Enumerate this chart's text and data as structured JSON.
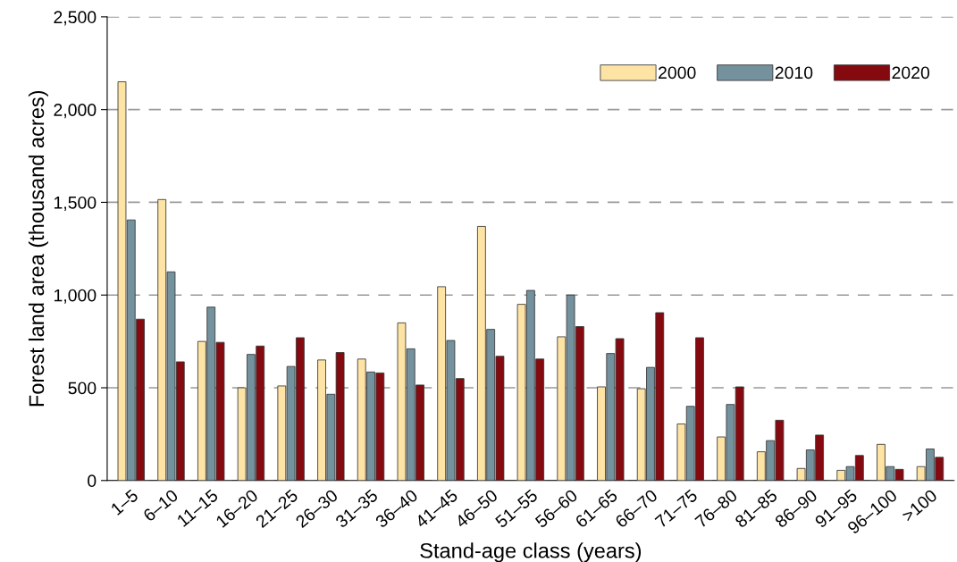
{
  "chart_data": {
    "type": "bar",
    "xlabel": "Stand-age class (years)",
    "ylabel": "Forest land area (thousand acres)",
    "categories": [
      "1–5",
      "6–10",
      "11–15",
      "16–20",
      "21–25",
      "26–30",
      "31–35",
      "36–40",
      "41–45",
      "46–50",
      "51–55",
      "56–60",
      "61–65",
      "66–70",
      "71–75",
      "76–80",
      "81–85",
      "86–90",
      "91–95",
      "96–100",
      ">100"
    ],
    "series": [
      {
        "name": "2000",
        "color": "#fde3a4",
        "values": [
          2150,
          1515,
          750,
          500,
          510,
          650,
          655,
          850,
          1045,
          1370,
          950,
          775,
          505,
          495,
          305,
          235,
          155,
          65,
          55,
          195,
          75
        ]
      },
      {
        "name": "2010",
        "color": "#74919e",
        "values": [
          1405,
          1125,
          935,
          680,
          615,
          465,
          585,
          710,
          755,
          815,
          1025,
          1000,
          685,
          610,
          400,
          410,
          215,
          165,
          75,
          75,
          170
        ]
      },
      {
        "name": "2020",
        "color": "#850a10",
        "values": [
          870,
          640,
          745,
          725,
          770,
          690,
          580,
          515,
          550,
          670,
          655,
          830,
          765,
          905,
          770,
          505,
          325,
          245,
          135,
          60,
          125
        ]
      }
    ],
    "ylim": [
      0,
      2500
    ],
    "yticks": [
      0,
      {
        "value": 500,
        "label": "500"
      },
      {
        "value": 1000,
        "label": "1,000"
      },
      {
        "value": 1500,
        "label": "1,500"
      },
      {
        "value": 2000,
        "label": "2,000"
      },
      {
        "value": 2500,
        "label": "2,500"
      }
    ],
    "grid": "y",
    "legend": "top right"
  }
}
